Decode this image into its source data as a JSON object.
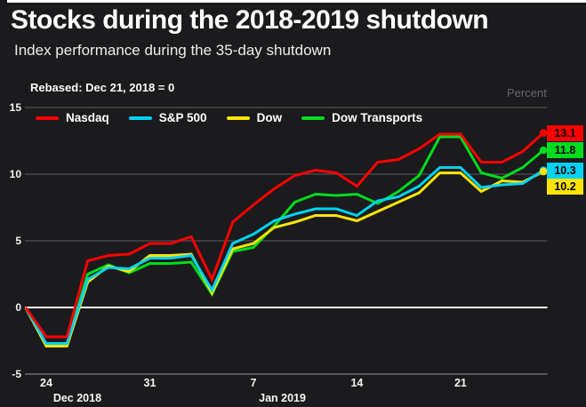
{
  "header": {
    "title": "Stocks during the 2018-2019 shutdown",
    "subtitle": "Index performance during the 35-day shutdown"
  },
  "chart_data": {
    "type": "line",
    "title": "Stocks during the 2018-2019 shutdown",
    "note": "Rebased: Dec 21, 2018 = 0",
    "ylabel": "Percent",
    "ylim": [
      -5,
      15
    ],
    "y_ticks": [
      15,
      10,
      5,
      0,
      -5
    ],
    "grid": "horizontal",
    "legend_position": "top",
    "x_dates": [
      "Dec 21",
      "Dec 24",
      "Dec 25",
      "Dec 26",
      "Dec 27",
      "Dec 28",
      "Dec 31",
      "Jan 1",
      "Jan 2",
      "Jan 3",
      "Jan 4",
      "Jan 7",
      "Jan 8",
      "Jan 9",
      "Jan 10",
      "Jan 11",
      "Jan 14",
      "Jan 15",
      "Jan 16",
      "Jan 17",
      "Jan 18",
      "Jan 21",
      "Jan 22",
      "Jan 23",
      "Jan 24",
      "Jan 25"
    ],
    "x_ticks": [
      {
        "label": "24",
        "index": 1
      },
      {
        "label": "31",
        "index": 6
      },
      {
        "label": "7",
        "index": 11
      },
      {
        "label": "14",
        "index": 16
      },
      {
        "label": "21",
        "index": 21
      }
    ],
    "month_labels": [
      {
        "label": "Dec 2018",
        "index": 2.5
      },
      {
        "label": "Jan 2019",
        "index": 12.4
      }
    ],
    "series": [
      {
        "name": "Nasdaq",
        "color": "#fe0000",
        "end_label": "13.1",
        "values": [
          0,
          -2.2,
          -2.2,
          3.5,
          3.9,
          4.0,
          4.8,
          4.8,
          5.3,
          2.1,
          6.4,
          7.7,
          8.9,
          9.9,
          10.3,
          10.1,
          9.1,
          10.9,
          11.1,
          11.9,
          13.0,
          13.0,
          10.9,
          10.9,
          11.7,
          13.1
        ]
      },
      {
        "name": "S&P 500",
        "color": "#00d2f0",
        "end_label": "10.3",
        "values": [
          0,
          -2.7,
          -2.7,
          2.1,
          3.0,
          2.9,
          3.7,
          3.7,
          3.9,
          1.3,
          4.8,
          5.5,
          6.5,
          7.0,
          7.4,
          7.4,
          6.9,
          8.0,
          8.3,
          9.1,
          10.5,
          10.5,
          9.0,
          9.2,
          9.3,
          10.3
        ]
      },
      {
        "name": "Dow",
        "color": "#ffe405",
        "end_label": "10.2",
        "values": [
          0,
          -2.9,
          -2.9,
          1.9,
          3.1,
          2.7,
          3.9,
          3.9,
          4.0,
          1.1,
          4.4,
          4.8,
          6.0,
          6.4,
          6.9,
          6.9,
          6.5,
          7.2,
          7.9,
          8.6,
          10.1,
          10.1,
          8.7,
          9.5,
          9.4,
          10.2
        ]
      },
      {
        "name": "Dow Transports",
        "color": "#00dc1e",
        "end_label": "11.8",
        "values": [
          0,
          -2.8,
          -2.8,
          2.5,
          3.2,
          2.6,
          3.3,
          3.3,
          3.4,
          1.0,
          4.2,
          4.5,
          6.1,
          7.9,
          8.5,
          8.4,
          8.5,
          7.8,
          8.7,
          9.9,
          12.8,
          12.8,
          10.1,
          9.7,
          10.5,
          11.8
        ]
      }
    ],
    "colors": {
      "background": "#1b1b1d",
      "grid": "#4f4f54",
      "zero_line": "#ffffff",
      "bottom_line": "#7c7c80",
      "axis_text": "#f2f2f2",
      "accent_bar": "#ffffff"
    }
  }
}
